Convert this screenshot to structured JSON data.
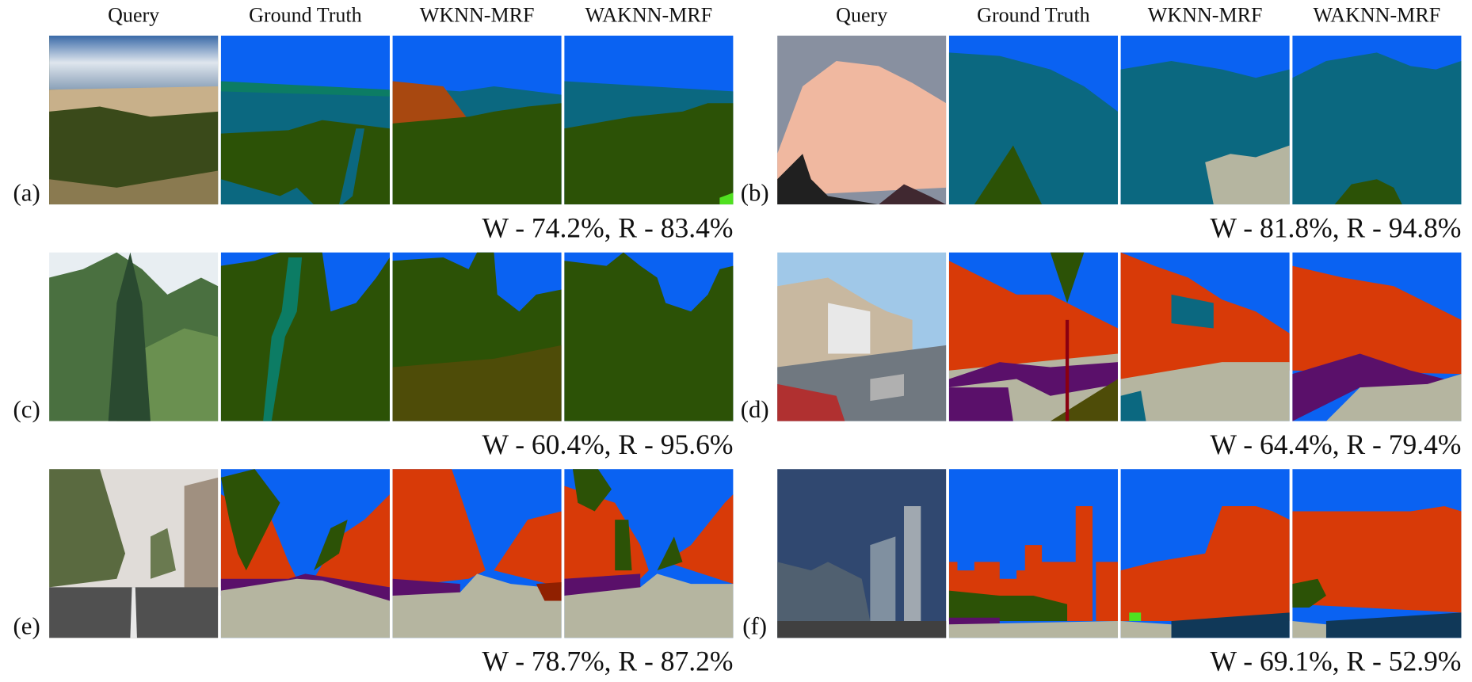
{
  "panels": [
    {
      "headers": [
        "Query",
        "Ground Truth",
        "WKNN-MRF",
        "WAKNN-MRF"
      ],
      "rows": [
        {
          "label": "(a)",
          "caption": "W - 74.2%, R - 83.4%"
        },
        {
          "label": "(c)",
          "caption": "W - 60.4%, R - 95.6%"
        },
        {
          "label": "(e)",
          "caption": "W - 78.7%, R - 87.2%"
        }
      ]
    },
    {
      "headers": [
        "Query",
        "Ground Truth",
        "WKNN-MRF",
        "WAKNN-MRF"
      ],
      "rows": [
        {
          "label": "(b)",
          "caption": "W - 81.8%, R - 94.8%"
        },
        {
          "label": "(d)",
          "caption": "W - 64.4%, R - 79.4%"
        },
        {
          "label": "(f)",
          "caption": "W - 69.1%, R - 52.9%"
        }
      ]
    }
  ]
}
